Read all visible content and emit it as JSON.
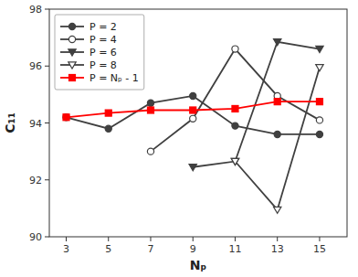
{
  "chart_data": {
    "type": "line",
    "x_label": "Nₚ",
    "y_label": "C₁₁",
    "xlim": [
      2.2,
      16.3
    ],
    "xticks": [
      3,
      5,
      7,
      9,
      11,
      13,
      15
    ],
    "ylim": [
      90,
      98
    ],
    "yticks": [
      90,
      92,
      94,
      96,
      98
    ],
    "grid": false,
    "legend": "upper left",
    "series": [
      {
        "name": "P = 2",
        "color": "#404040",
        "marker": "circle",
        "line_style": "solid",
        "x": [
          3,
          5,
          7,
          9,
          11,
          13,
          15
        ],
        "values": [
          94.2,
          93.8,
          94.7,
          94.95,
          93.9,
          93.6,
          93.6
        ]
      },
      {
        "name": "P = 4",
        "color": "#404040",
        "marker": "circle-open",
        "line_style": "solid",
        "x": [
          7,
          9,
          11,
          13,
          15
        ],
        "values": [
          93.0,
          94.15,
          96.6,
          94.95,
          94.1
        ]
      },
      {
        "name": "P = 6",
        "color": "#404040",
        "marker": "triangle-down",
        "line_style": "solid",
        "x": [
          9,
          11,
          13,
          15
        ],
        "values": [
          92.45,
          92.65,
          96.85,
          96.6
        ]
      },
      {
        "name": "P = 8",
        "color": "#404040",
        "marker": "triangle-down-open",
        "line_style": "solid",
        "x": [
          11,
          13,
          15
        ],
        "values": [
          92.65,
          90.95,
          95.95
        ]
      },
      {
        "name": "P = Nₚ - 1",
        "color": "#ff0000",
        "marker": "square",
        "line_style": "solid",
        "x": [
          3,
          5,
          7,
          9,
          11,
          13,
          15
        ],
        "values": [
          94.2,
          94.35,
          94.45,
          94.45,
          94.5,
          94.75,
          94.75
        ]
      }
    ]
  }
}
